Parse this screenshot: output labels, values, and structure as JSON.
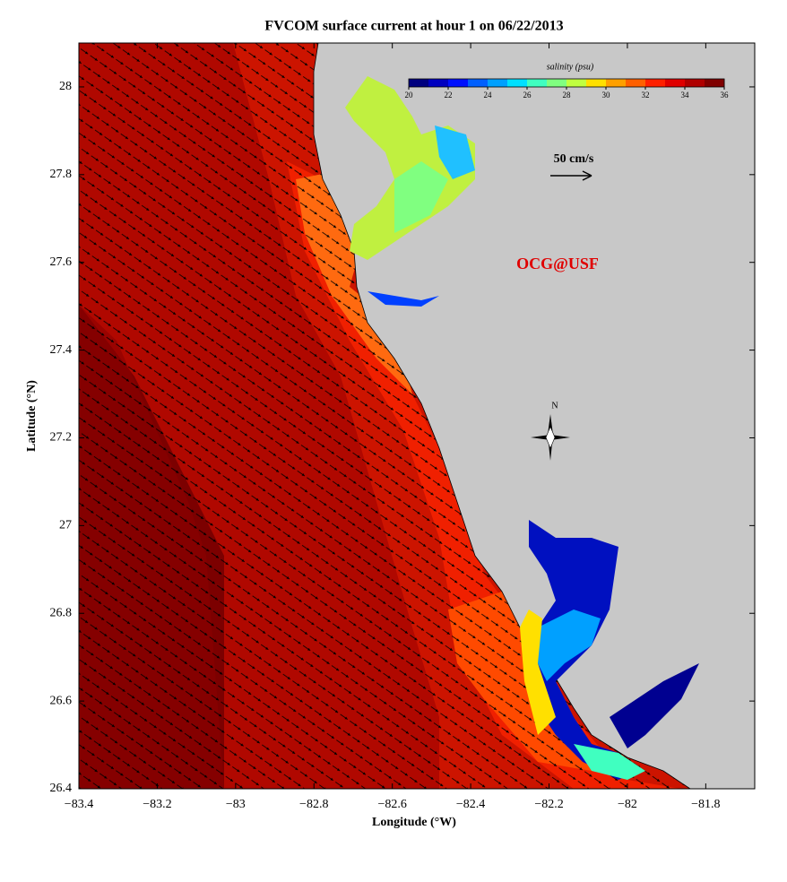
{
  "chart_data": {
    "type": "map",
    "title": "FVCOM surface current at hour 1 on 06/22/2013",
    "xlabel": "Longitude (°W)",
    "ylabel": "Latitude (°N)",
    "xlim": [
      -83.4,
      -81.675
    ],
    "ylim": [
      26.4,
      28.1
    ],
    "xticks": [
      {
        "value": -83.4,
        "label": "−83.4"
      },
      {
        "value": -83.2,
        "label": "−83.2"
      },
      {
        "value": -83,
        "label": "−83"
      },
      {
        "value": -82.8,
        "label": "−82.8"
      },
      {
        "value": -82.6,
        "label": "−82.6"
      },
      {
        "value": -82.4,
        "label": "−82.4"
      },
      {
        "value": -82.2,
        "label": "−82.2"
      },
      {
        "value": -82,
        "label": "−82"
      },
      {
        "value": -81.8,
        "label": "−81.8"
      }
    ],
    "yticks": [
      26.4,
      26.6,
      26.8,
      27,
      27.2,
      27.4,
      27.6,
      27.8,
      28
    ],
    "colorbar": {
      "label": "salinity (psu)",
      "lim": [
        20,
        36
      ],
      "ticks": [
        20,
        22,
        24,
        26,
        28,
        30,
        32,
        34,
        36
      ],
      "colors": [
        "#00007f",
        "#0000c0",
        "#0010ff",
        "#0060ff",
        "#00a0ff",
        "#00e0ff",
        "#40ffc0",
        "#80ff80",
        "#c0ff40",
        "#ffe000",
        "#ffa000",
        "#ff6000",
        "#ff2000",
        "#e00000",
        "#b00000",
        "#800000"
      ]
    },
    "scale_label": "50 cm/s",
    "watermark": "OCG@USF",
    "compass_label": "N"
  }
}
